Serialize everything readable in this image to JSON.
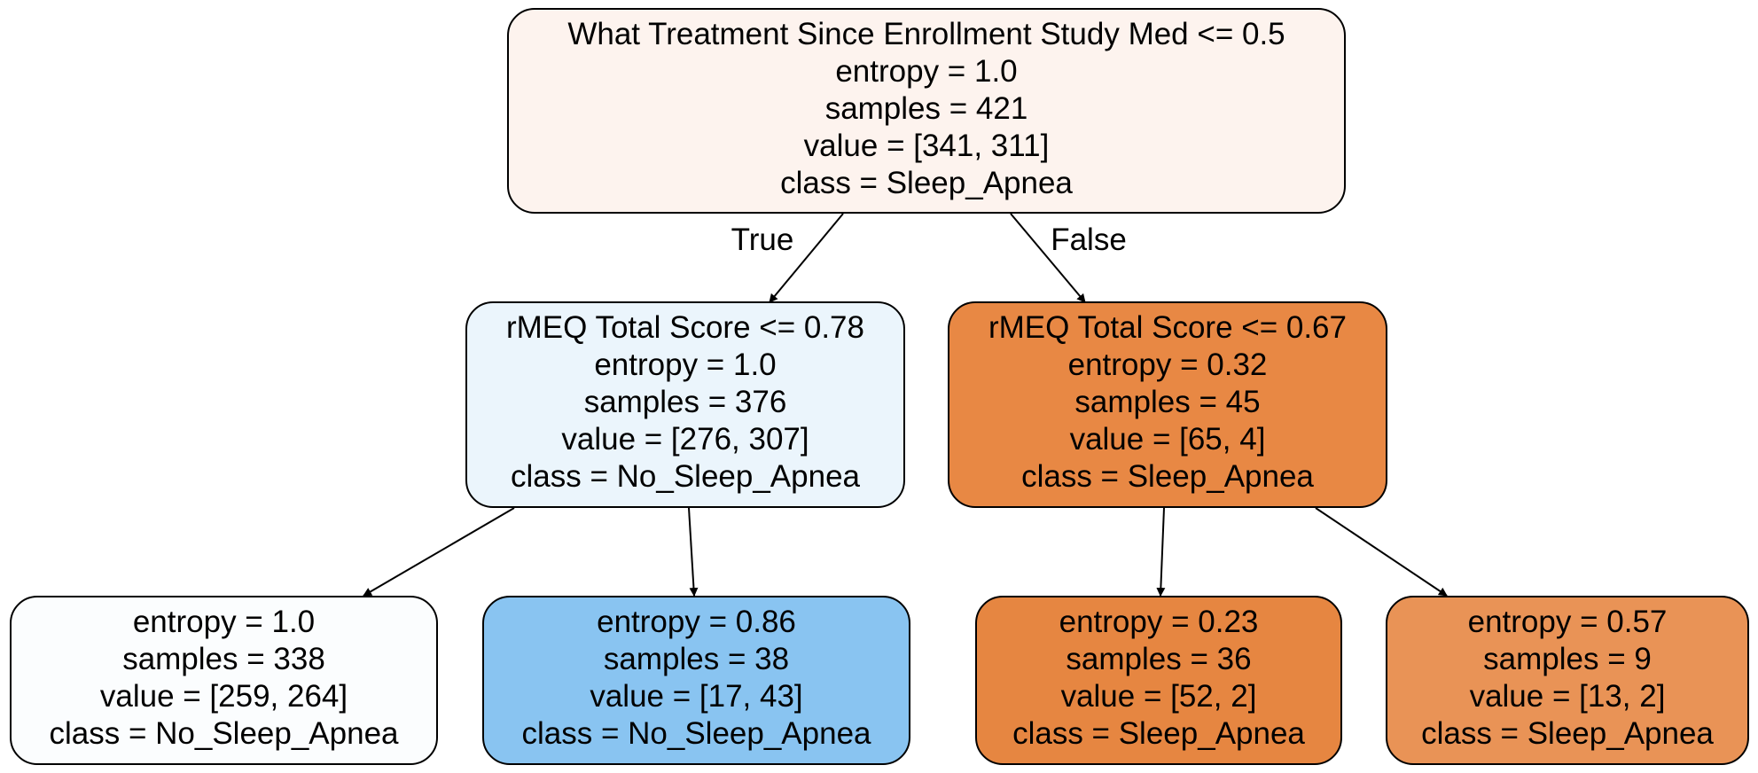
{
  "tree": {
    "nodes": [
      {
        "id": "root",
        "fill": "#fdf3ee",
        "lines": [
          "What Treatment Since Enrollment Study Med <= 0.5",
          "entropy = 1.0",
          "samples = 421",
          "value = [341, 311]",
          "class = Sleep_Apnea"
        ]
      },
      {
        "id": "left",
        "fill": "#ebf5fc",
        "lines": [
          "rMEQ Total Score <= 0.78",
          "entropy = 1.0",
          "samples = 376",
          "value = [276, 307]",
          "class = No_Sleep_Apnea"
        ]
      },
      {
        "id": "right",
        "fill": "#e88844",
        "lines": [
          "rMEQ Total Score <= 0.67",
          "entropy = 0.32",
          "samples = 45",
          "value = [65, 4]",
          "class = Sleep_Apnea"
        ]
      },
      {
        "id": "left-left",
        "fill": "#fbfdfe",
        "lines": [
          "entropy = 1.0",
          "samples = 338",
          "value = [259, 264]",
          "class = No_Sleep_Apnea"
        ]
      },
      {
        "id": "left-right",
        "fill": "#89c4f1",
        "lines": [
          "entropy = 0.86",
          "samples = 38",
          "value = [17, 43]",
          "class = No_Sleep_Apnea"
        ]
      },
      {
        "id": "right-left",
        "fill": "#e68641",
        "lines": [
          "entropy = 0.23",
          "samples = 36",
          "value = [52, 2]",
          "class = Sleep_Apnea"
        ]
      },
      {
        "id": "right-right",
        "fill": "#e99356",
        "lines": [
          "entropy = 0.57",
          "samples = 9",
          "value = [13, 2]",
          "class = Sleep_Apnea"
        ]
      }
    ],
    "edges": [
      {
        "from": "root",
        "to": "left",
        "label": "True"
      },
      {
        "from": "root",
        "to": "right",
        "label": "False"
      },
      {
        "from": "left",
        "to": "left-left",
        "label": ""
      },
      {
        "from": "left",
        "to": "left-right",
        "label": ""
      },
      {
        "from": "right",
        "to": "right-left",
        "label": ""
      },
      {
        "from": "right",
        "to": "right-right",
        "label": ""
      }
    ]
  }
}
